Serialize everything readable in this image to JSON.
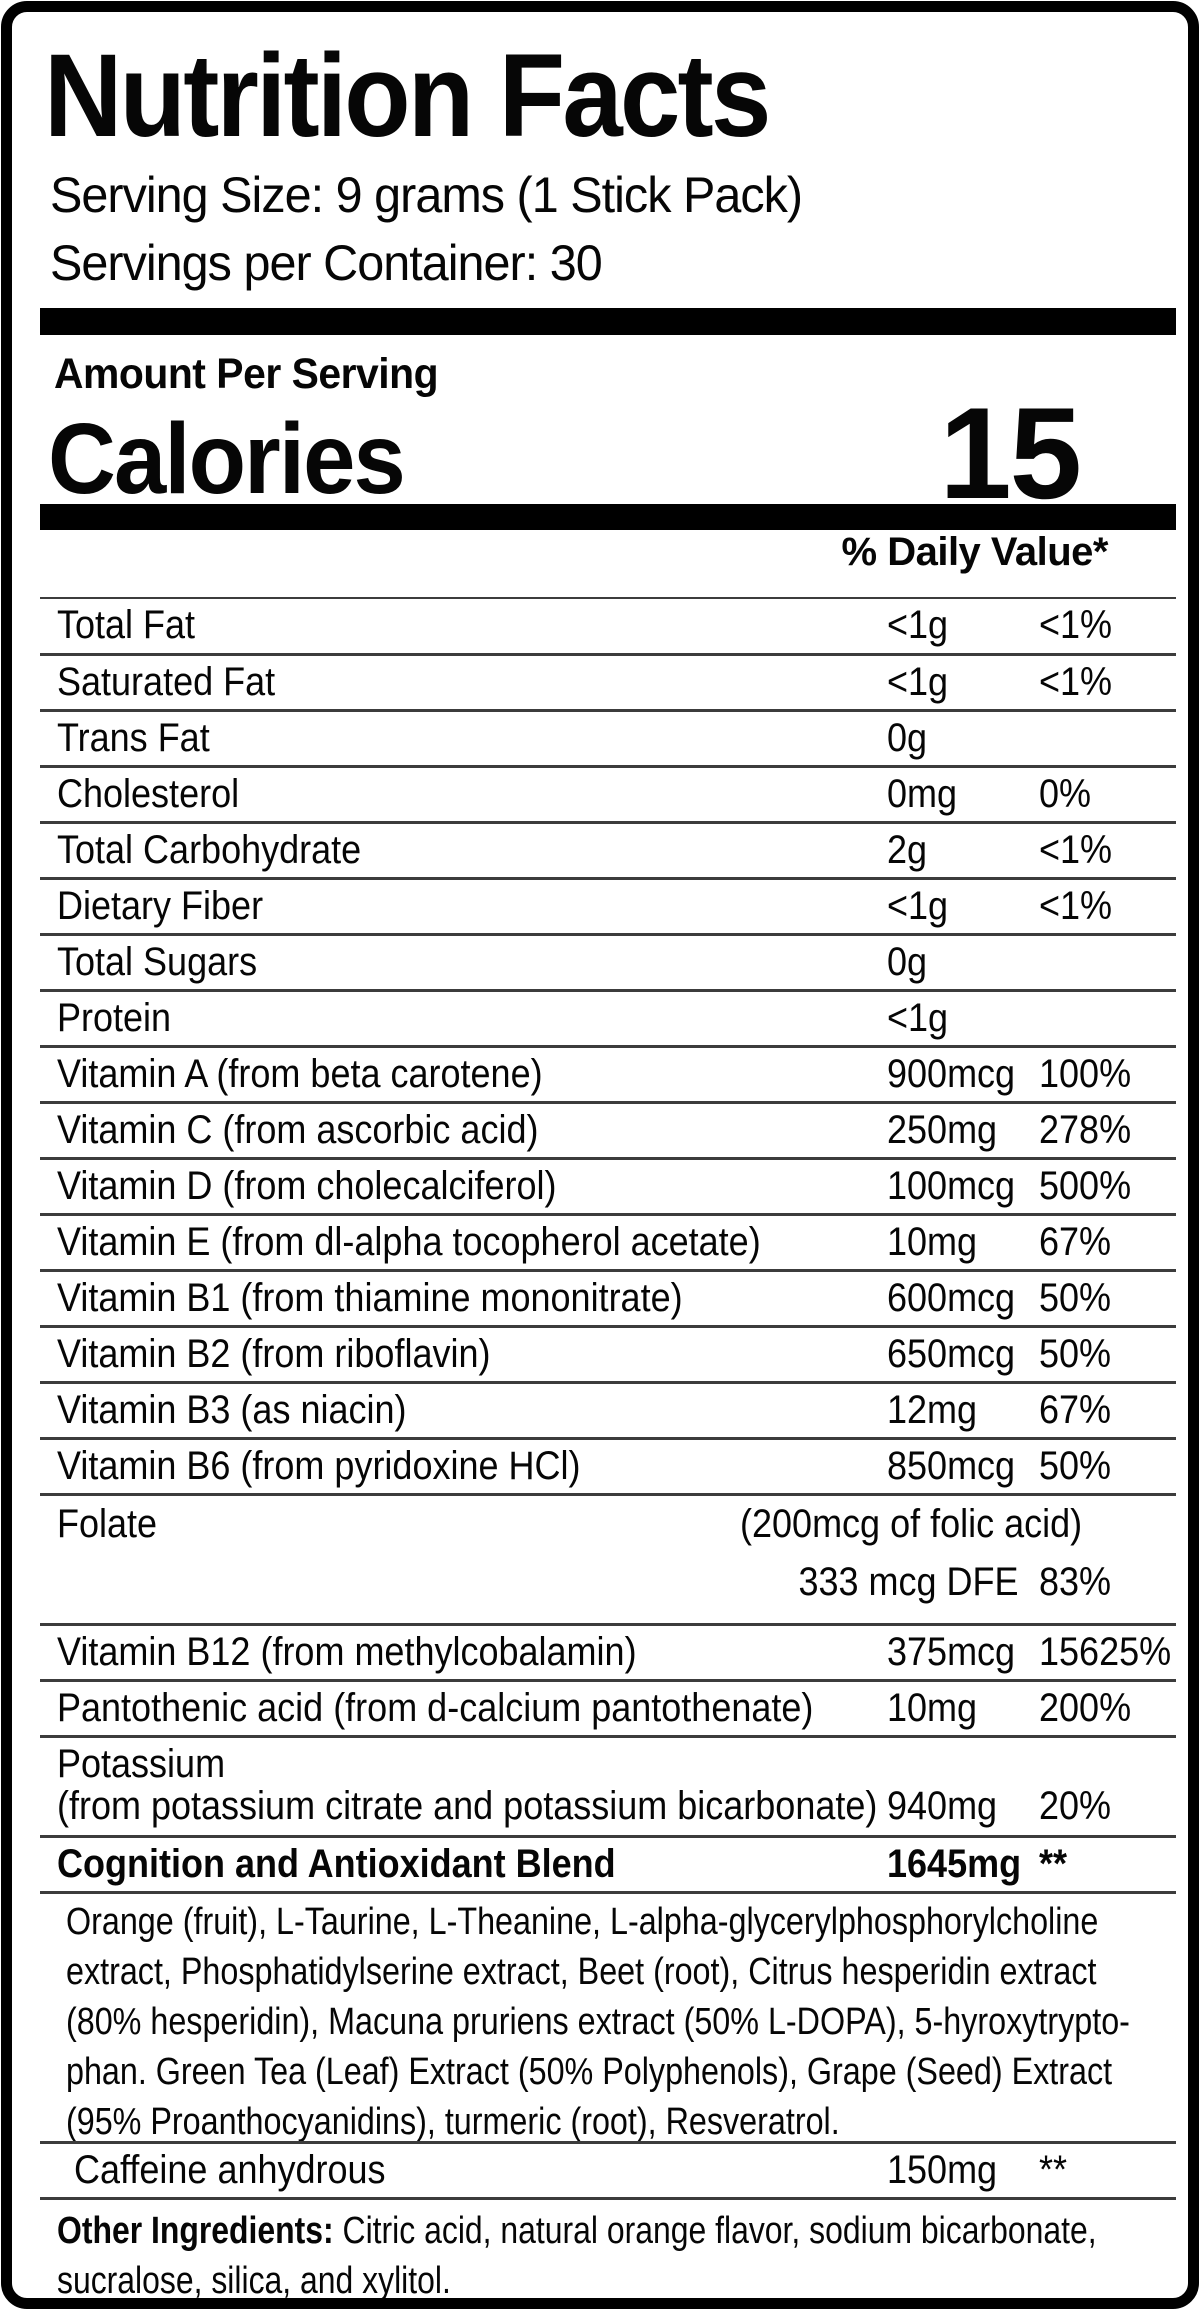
{
  "header": {
    "title": "Nutrition Facts",
    "serving_size": "Serving Size: 9 grams (1 Stick Pack)",
    "servings_per_container": "Servings per Container: 30"
  },
  "calories": {
    "amount_per_serving": "Amount Per Serving",
    "label": "Calories",
    "value": "15"
  },
  "table": {
    "daily_value_header": "% Daily Value*",
    "rows": [
      {
        "label": "Total Fat",
        "amount": "<1g",
        "dv": "<1%"
      },
      {
        "label": "Saturated Fat",
        "amount": "<1g",
        "dv": "<1%"
      },
      {
        "label": "Trans Fat",
        "amount": "0g",
        "dv": ""
      },
      {
        "label": "Cholesterol",
        "amount": "0mg",
        "dv": "0%"
      },
      {
        "label": "Total Carbohydrate",
        "amount": "2g",
        "dv": "<1%"
      },
      {
        "label": "Dietary Fiber",
        "amount": "<1g",
        "dv": "<1%"
      },
      {
        "label": "Total Sugars",
        "amount": "0g",
        "dv": ""
      },
      {
        "label": "Protein",
        "amount": "<1g",
        "dv": ""
      },
      {
        "label": "Vitamin A (from beta carotene)",
        "amount": "900mcg",
        "dv": "100%"
      },
      {
        "label": "Vitamin C (from ascorbic acid)",
        "amount": "250mg",
        "dv": "278%"
      },
      {
        "label": "Vitamin D (from cholecalciferol)",
        "amount": "100mcg",
        "dv": "500%"
      },
      {
        "label": "Vitamin E (from dl-alpha tocopherol acetate)",
        "amount": "10mg",
        "dv": "67%"
      },
      {
        "label": "Vitamin B1 (from thiamine mononitrate)",
        "amount": "600mcg",
        "dv": "50%"
      },
      {
        "label": "Vitamin B2 (from riboflavin)",
        "amount": "650mcg",
        "dv": "50%"
      },
      {
        "label": "Vitamin B3 (as niacin)",
        "amount": "12mg",
        "dv": "67%"
      },
      {
        "label": "Vitamin B6 (from pyridoxine HCl)",
        "amount": "850mcg",
        "dv": "50%"
      },
      {
        "type": "folate",
        "label": "Folate",
        "note": "(200mcg of folic acid)",
        "amount": "333 mcg DFE",
        "dv": "83%"
      },
      {
        "label": "Vitamin B12 (from methylcobalamin)",
        "amount": "375mcg",
        "dv": "15625%"
      },
      {
        "label": "Pantothenic acid (from d-calcium pantothenate)",
        "amount": "10mg",
        "dv": "200%"
      },
      {
        "type": "twoline",
        "label": "Potassium",
        "label2": "(from potassium citrate and potassium bicarbonate)",
        "amount": "940mg",
        "dv": "20%"
      },
      {
        "label": "Cognition and Antioxidant Blend",
        "amount": "1645mg",
        "dv": "**",
        "bold": true
      },
      {
        "type": "paragraph",
        "lines": [
          "Orange (fruit), L-Taurine, L-Theanine, L-alpha-glycerylphosphorylcholine",
          "extract, Phosphatidylserine extract, Beet (root), Citrus hesperidin extract",
          "(80% hesperidin), Macuna pruriens extract (50% L-DOPA), 5-hyroxytrypto-",
          "phan. Green Tea (Leaf) Extract (50% Polyphenols), Grape (Seed) Extract",
          "(95% Proanthocyanidins), turmeric (root), Resveratrol."
        ]
      },
      {
        "label": "Caffeine anhydrous",
        "amount": "150mg",
        "dv": "**",
        "indent": true
      },
      {
        "type": "other",
        "prefix": "Other Ingredients:",
        "lines": [
          "Citric acid, natural orange flavor, sodium bicarbonate,",
          "sucralose, silica, and xylitol."
        ]
      }
    ]
  }
}
